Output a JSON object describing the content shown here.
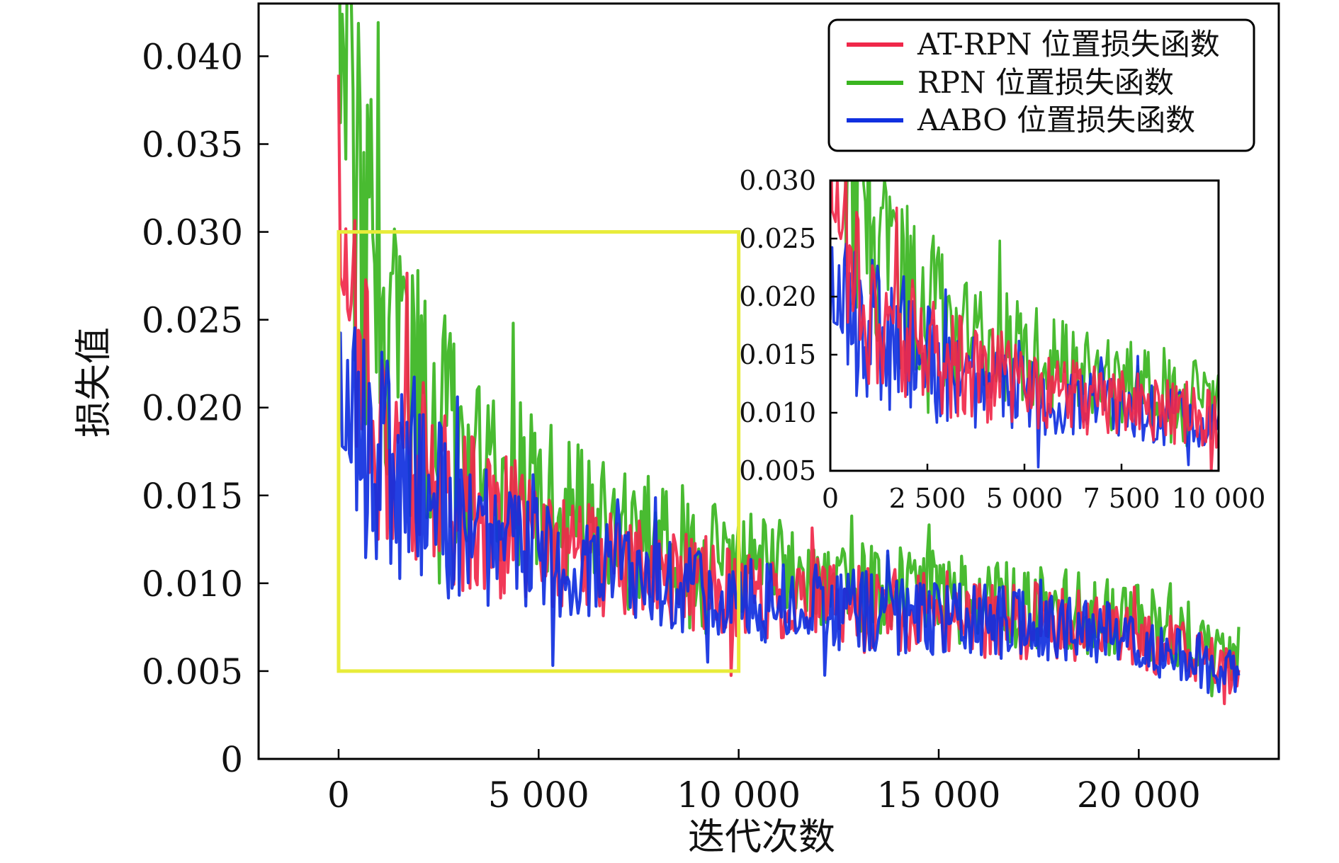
{
  "chart_data": {
    "type": "line",
    "xlabel": "迭代次数",
    "ylabel": "损失值",
    "xlim": [
      -2000,
      23500
    ],
    "ylim": [
      0,
      0.043
    ],
    "x_ticks": [
      0,
      5000,
      10000,
      15000,
      20000
    ],
    "x_tick_labels": [
      "0",
      "5 000",
      "10 000",
      "15 000",
      "20 000"
    ],
    "y_ticks": [
      0,
      0.005,
      0.01,
      0.015,
      0.02,
      0.025,
      0.03,
      0.035,
      0.04
    ],
    "y_tick_labels": [
      "0",
      "0.005",
      "0.010",
      "0.015",
      "0.020",
      "0.025",
      "0.030",
      "0.035",
      "0.040"
    ],
    "legend_position": "top-right",
    "highlight_box": {
      "x": [
        0,
        10000
      ],
      "y": [
        0.005,
        0.03
      ],
      "color": "#e8ec3a"
    },
    "series": [
      {
        "name": "AT-RPN 位置损失函数",
        "color": "#f0284a",
        "x": [
          0,
          1000,
          2000,
          3000,
          4000,
          5000,
          6000,
          7000,
          8000,
          9000,
          10000,
          12000,
          14000,
          16000,
          18000,
          20000,
          22500
        ],
        "values": [
          0.031,
          0.019,
          0.016,
          0.0145,
          0.0135,
          0.0125,
          0.0115,
          0.011,
          0.0105,
          0.01,
          0.0095,
          0.009,
          0.0085,
          0.008,
          0.0078,
          0.007,
          0.005
        ]
      },
      {
        "name": "RPN 位置损失函数",
        "color": "#3ab520",
        "x": [
          0,
          1000,
          2000,
          3000,
          4000,
          5000,
          6000,
          7000,
          8000,
          9000,
          10000,
          12000,
          14000,
          16000,
          18000,
          20000,
          22500
        ],
        "values": [
          0.041,
          0.024,
          0.0205,
          0.0185,
          0.0165,
          0.015,
          0.014,
          0.013,
          0.0125,
          0.012,
          0.0115,
          0.0105,
          0.0095,
          0.009,
          0.0085,
          0.008,
          0.006
        ]
      },
      {
        "name": "AABO 位置损失函数",
        "color": "#1030e0",
        "x": [
          0,
          1000,
          2000,
          3000,
          4000,
          5000,
          6000,
          7000,
          8000,
          9000,
          10000,
          12000,
          14000,
          16000,
          18000,
          20000,
          22500
        ],
        "values": [
          0.02,
          0.0175,
          0.015,
          0.0135,
          0.0125,
          0.0115,
          0.011,
          0.0105,
          0.01,
          0.0095,
          0.0092,
          0.0087,
          0.0082,
          0.0078,
          0.0074,
          0.0068,
          0.0045
        ]
      }
    ],
    "inset": {
      "xlim": [
        0,
        10000
      ],
      "ylim": [
        0.005,
        0.03
      ],
      "x_ticks": [
        0,
        2500,
        5000,
        7500,
        10000
      ],
      "x_tick_labels": [
        "0",
        "2 500",
        "5 000",
        "7 500",
        "10 000"
      ],
      "y_ticks": [
        0.005,
        0.01,
        0.015,
        0.02,
        0.025,
        0.03
      ],
      "y_tick_labels": [
        "0.005",
        "0.010",
        "0.015",
        "0.020",
        "0.025",
        "0.030"
      ]
    }
  }
}
